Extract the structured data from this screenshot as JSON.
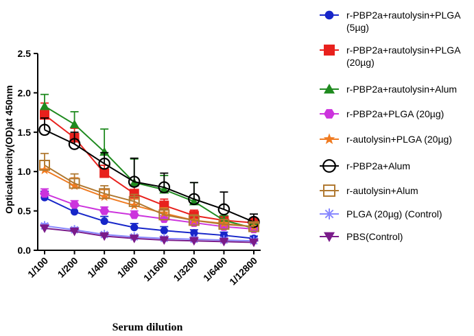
{
  "chart_data": {
    "type": "line",
    "xlabel": "Serum dilution",
    "ylabel": "Opticaldencity(OD)at 450nm",
    "ylim": [
      0,
      2.5
    ],
    "yticks": [
      "0.0",
      "0.5",
      "1.0",
      "1.5",
      "2.0",
      "2.5"
    ],
    "yticks_values": [
      0,
      0.5,
      1.0,
      1.5,
      2.0,
      2.5
    ],
    "categories": [
      "1/100",
      "1/200",
      "1/400",
      "1/800",
      "1/1600",
      "1/3200",
      "1/6400",
      "1/12800"
    ],
    "legend_position": "right",
    "series": [
      {
        "name": "r-PBP2a+rautolysin+PLGA (5µg)",
        "color": "#1726c9",
        "marker": "circle",
        "values": [
          0.67,
          0.49,
          0.37,
          0.29,
          0.25,
          0.22,
          0.19,
          0.15
        ],
        "errors": [
          0.08,
          0.07,
          0.06,
          0.05,
          0.05,
          0.04,
          0.04,
          0.03
        ]
      },
      {
        "name": "r-PBP2a+rautolysin+PLGA (20µg)",
        "color": "#e8211d",
        "marker": "square",
        "values": [
          1.72,
          1.43,
          0.98,
          0.72,
          0.57,
          0.44,
          0.38,
          0.35
        ],
        "errors": [
          0.15,
          0.12,
          0.1,
          0.1,
          0.08,
          0.07,
          0.06,
          0.06
        ]
      },
      {
        "name": "r-PBP2a+rautolysin+Alum",
        "color": "#1f8a1f",
        "marker": "triangle",
        "values": [
          1.83,
          1.6,
          1.25,
          0.86,
          0.77,
          0.62,
          0.38,
          0.28
        ],
        "errors": [
          0.15,
          0.16,
          0.29,
          0.3,
          0.18,
          0.24,
          0.06,
          0.05
        ]
      },
      {
        "name": "r-PBP2a+PLGA (20µg)",
        "color": "#cc33dd",
        "marker": "hexagon",
        "values": [
          0.72,
          0.58,
          0.5,
          0.45,
          0.4,
          0.35,
          0.3,
          0.27
        ],
        "errors": [
          0.06,
          0.05,
          0.05,
          0.05,
          0.04,
          0.04,
          0.04,
          0.04
        ]
      },
      {
        "name": "r-autolysin+PLGA (20µg)",
        "color": "#f07b21",
        "marker": "star",
        "values": [
          1.02,
          0.82,
          0.68,
          0.57,
          0.47,
          0.38,
          0.34,
          0.3
        ],
        "errors": [
          0.12,
          0.1,
          0.09,
          0.08,
          0.07,
          0.06,
          0.05,
          0.05
        ]
      },
      {
        "name": "r-PBP2a+Alum",
        "color": "#000000",
        "marker": "open-circle",
        "values": [
          1.53,
          1.35,
          1.1,
          0.87,
          0.8,
          0.65,
          0.52,
          0.36
        ],
        "errors": [
          0.15,
          0.15,
          0.14,
          0.3,
          0.18,
          0.21,
          0.22,
          0.1
        ]
      },
      {
        "name": "r-autolysin+Alum",
        "color": "#b07830",
        "marker": "open-square",
        "values": [
          1.08,
          0.85,
          0.72,
          0.62,
          0.45,
          0.38,
          0.33,
          0.3
        ],
        "errors": [
          0.15,
          0.12,
          0.1,
          0.09,
          0.08,
          0.07,
          0.06,
          0.05
        ]
      },
      {
        "name": "PLGA (20µg) (Control)",
        "color": "#8888ff",
        "marker": "asterisk",
        "values": [
          0.31,
          0.26,
          0.2,
          0.17,
          0.15,
          0.14,
          0.13,
          0.12
        ],
        "errors": [
          0.03,
          0.03,
          0.02,
          0.02,
          0.02,
          0.02,
          0.02,
          0.02
        ]
      },
      {
        "name": "PBS(Control)",
        "color": "#7a1b8a",
        "marker": "down-triangle",
        "values": [
          0.28,
          0.24,
          0.18,
          0.15,
          0.13,
          0.12,
          0.11,
          0.1
        ],
        "errors": [
          0.03,
          0.02,
          0.02,
          0.02,
          0.02,
          0.02,
          0.02,
          0.02
        ]
      }
    ]
  }
}
